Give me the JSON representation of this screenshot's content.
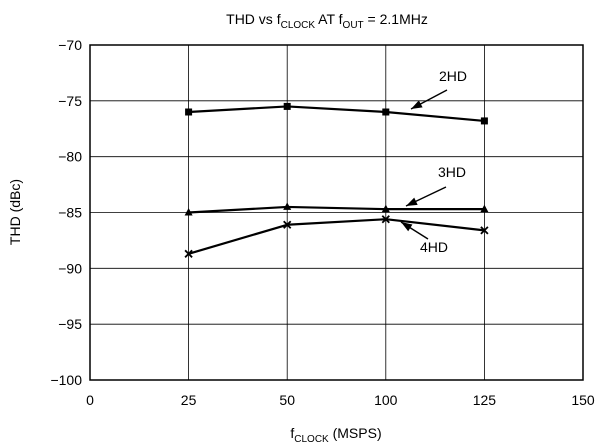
{
  "chart_data": {
    "type": "line",
    "title": {
      "prefix": "THD vs f",
      "sub1": "CLOCK",
      "middle": " AT f",
      "sub2": "OUT",
      "suffix": " = 2.1MHz"
    },
    "xlabel": {
      "main": "f",
      "sub": "CLOCK",
      "rest": " (MSPS)"
    },
    "ylabel": "THD (dBc)",
    "xlim": [
      0,
      150
    ],
    "ylim": [
      -100,
      -70
    ],
    "x_axis_ticks": [
      "0",
      "25",
      "50",
      "100",
      "125",
      "150"
    ],
    "y_axis_ticks": [
      "−70",
      "−75",
      "−80",
      "−85",
      "−90",
      "−95",
      "−100"
    ],
    "grid": true,
    "x_scale_note": "categorical-spaced ticks: 0, 25, 50, 100, 125, 150 at equal intervals",
    "series": [
      {
        "name": "2HD",
        "marker": "square",
        "x": [
          25,
          50,
          100,
          125
        ],
        "y": [
          -76.0,
          -75.5,
          -76.0,
          -76.8
        ]
      },
      {
        "name": "3HD",
        "marker": "triangle",
        "x": [
          25,
          50,
          100,
          125
        ],
        "y": [
          -85.0,
          -84.5,
          -84.7,
          -84.7
        ]
      },
      {
        "name": "4HD",
        "marker": "x",
        "x": [
          25,
          50,
          100,
          125
        ],
        "y": [
          -88.7,
          -86.1,
          -85.6,
          -86.6
        ]
      }
    ]
  }
}
